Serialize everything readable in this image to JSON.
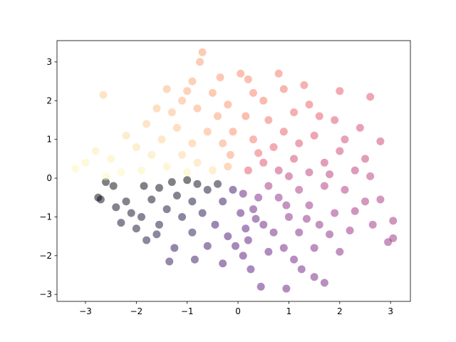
{
  "chart_data": {
    "type": "scatter",
    "x": [
      -3.2,
      -3.0,
      -2.65,
      -0.7,
      -0.75,
      0.45,
      0.95,
      1.7,
      1.5,
      2.95,
      3.05,
      3.05,
      2.8,
      2.6,
      2.0,
      -2.75,
      -2.7,
      -1.35,
      0.25,
      1.25,
      -1.4,
      0.05,
      0.8,
      -2.6,
      -2.45,
      -2.2,
      -2.1,
      -1.9,
      -1.7,
      -1.55,
      -1.3,
      -1.0,
      -0.8,
      -0.6,
      -1.2,
      -0.9,
      -2.0,
      -1.6,
      -1.1,
      -0.7,
      -0.3,
      -0.1,
      -1.4,
      -2.3,
      -1.8,
      -1.25,
      -0.9,
      -0.45,
      -0.2,
      -0.6,
      -0.3,
      -0.85,
      -1.55,
      -2.4,
      -0.4,
      -1.85,
      0.1,
      0.3,
      0.5,
      0.2,
      0.6,
      0.1,
      0.8,
      1.0,
      1.2,
      0.9,
      1.4,
      1.6,
      1.9,
      2.2,
      2.5,
      2.1,
      1.7,
      1.2,
      0.6,
      0.4,
      0.7,
      1.5,
      2.0,
      2.65,
      1.1,
      0.35,
      0.05,
      1.8,
      2.3,
      0.95,
      1.35,
      0.15,
      -0.05,
      2.8,
      0.2,
      0.5,
      0.8,
      1.1,
      1.4,
      1.7,
      2.0,
      2.3,
      2.6,
      1.2,
      0.9,
      1.5,
      1.9,
      2.4,
      0.6,
      0.3,
      1.1,
      1.4,
      0.5,
      0.15,
      0.3,
      0.9,
      1.3,
      2.1,
      0.7,
      1.0,
      2.5,
      1.8,
      0.4,
      1.6,
      0.2,
      -0.2,
      -0.5,
      -0.8,
      -1.1,
      -1.4,
      -1.7,
      -2.0,
      -2.2,
      -1.9,
      -2.5,
      -2.3,
      -0.3,
      -0.6,
      -0.9,
      -1.2,
      -1.5,
      -1.8,
      -0.4,
      -0.8,
      -1.1,
      -0.2,
      -0.5,
      -0.9,
      -1.3,
      -1.6,
      -0.1,
      -2.6,
      -2.8,
      -0.15,
      -1.0,
      -0.35,
      -1.0
    ],
    "values": [
      0.25,
      0.4,
      2.15,
      3.25,
      3.0,
      -2.8,
      -2.85,
      -2.7,
      -2.55,
      -1.65,
      -1.55,
      -1.1,
      0.95,
      2.1,
      2.25,
      -0.5,
      -0.55,
      -2.15,
      -2.35,
      -2.35,
      2.3,
      2.7,
      2.7,
      -0.1,
      -0.2,
      -0.6,
      -0.9,
      -1.0,
      -0.55,
      -0.25,
      -0.1,
      -0.05,
      -0.15,
      -0.3,
      -0.45,
      -0.6,
      -1.3,
      -1.45,
      -1.0,
      -0.9,
      -0.6,
      -0.3,
      -0.8,
      -1.15,
      -1.6,
      -1.8,
      -1.4,
      -1.2,
      -1.5,
      -1.75,
      -2.2,
      -2.1,
      -1.2,
      -0.75,
      -0.15,
      -0.2,
      -0.4,
      -0.8,
      -1.2,
      -1.6,
      -1.9,
      -2.0,
      -0.5,
      -1.0,
      -1.4,
      -1.8,
      -0.7,
      -1.2,
      -0.9,
      -1.35,
      -0.6,
      -0.3,
      -0.2,
      -0.3,
      -0.2,
      -0.5,
      -1.4,
      -1.8,
      -1.9,
      -1.2,
      -2.1,
      -1.05,
      -0.9,
      -1.45,
      -0.85,
      -0.7,
      -1.05,
      -1.3,
      -1.75,
      -0.55,
      0.2,
      0.4,
      0.2,
      0.5,
      0.15,
      0.4,
      0.7,
      0.2,
      0.05,
      0.9,
      1.2,
      1.1,
      1.5,
      1.3,
      1.5,
      1.0,
      1.7,
      1.9,
      2.0,
      1.6,
      2.2,
      2.3,
      2.4,
      1.0,
      0.8,
      0.05,
      0.5,
      0.1,
      0.65,
      1.6,
      2.55,
      0.3,
      0.2,
      0.4,
      0.6,
      0.3,
      0.6,
      0.8,
      1.1,
      0.2,
      0.5,
      0.15,
      0.9,
      1.2,
      0.9,
      1.3,
      1.0,
      1.4,
      1.6,
      1.8,
      2.0,
      1.9,
      2.2,
      2.5,
      1.7,
      1.8,
      1.2,
      0.05,
      0.7,
      0.6,
      0.15,
      2.6,
      2.25
    ],
    "xlim": [
      -3.56,
      3.39
    ],
    "ylim": [
      -3.18,
      3.55
    ],
    "xticks": [
      {
        "value": -3,
        "label": "−3"
      },
      {
        "value": -2,
        "label": "−2"
      },
      {
        "value": -1,
        "label": "−1"
      },
      0,
      1,
      2,
      3
    ],
    "yticks": [
      {
        "value": -3,
        "label": "−3"
      },
      {
        "value": -2,
        "label": "−2"
      },
      {
        "value": -1,
        "label": "−1"
      },
      0,
      1,
      2,
      3
    ],
    "colormap": [
      "#000004",
      "#1c1044",
      "#4f127b",
      "#812581",
      "#b5367a",
      "#e55064",
      "#fb8761",
      "#fec287",
      "#fcfdbf"
    ],
    "alpha": 0.5
  }
}
